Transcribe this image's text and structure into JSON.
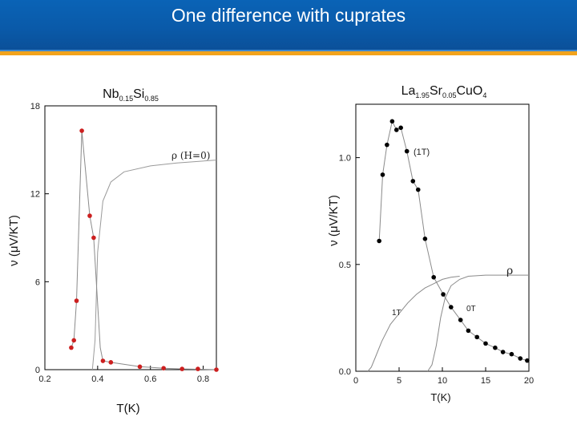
{
  "slide": {
    "title": "One difference with cuprates"
  },
  "chart_data": [
    {
      "type": "scatter",
      "title_main": "Nb",
      "title_sub1": "0.15",
      "title_mid": "Si",
      "title_sub2": "0.85",
      "xlabel": "T(K)",
      "ylabel": "ν (μV/KT)",
      "xlim": [
        0.2,
        0.85
      ],
      "ylim": [
        0,
        18
      ],
      "xticks": [
        "0.2",
        "0.4",
        "0.6",
        "0.8"
      ],
      "yticks": [
        "0",
        "6",
        "12",
        "18"
      ],
      "series": [
        {
          "points": [
            [
              0.3,
              1.5
            ],
            [
              0.31,
              2.0
            ],
            [
              0.32,
              4.7
            ],
            [
              0.34,
              16.3
            ],
            [
              0.37,
              10.5
            ],
            [
              0.385,
              9.0
            ],
            [
              0.42,
              0.6
            ],
            [
              0.45,
              0.5
            ],
            [
              0.56,
              0.2
            ],
            [
              0.65,
              0.1
            ],
            [
              0.72,
              0.05
            ],
            [
              0.78,
              0.05
            ],
            [
              0.85,
              0.0
            ]
          ],
          "color": "#cc1f1f"
        }
      ],
      "guide_line": [
        [
          0.3,
          1.5
        ],
        [
          0.31,
          2.0
        ],
        [
          0.32,
          4.7
        ],
        [
          0.34,
          16.3
        ],
        [
          0.37,
          10.5
        ],
        [
          0.385,
          9.0
        ],
        [
          0.41,
          1.5
        ],
        [
          0.42,
          0.6
        ],
        [
          0.45,
          0.5
        ],
        [
          0.56,
          0.2
        ],
        [
          0.65,
          0.1
        ],
        [
          0.72,
          0.05
        ],
        [
          0.85,
          0.0
        ]
      ],
      "rho_curve": [
        [
          0.38,
          0.0
        ],
        [
          0.39,
          2.0
        ],
        [
          0.4,
          8.0
        ],
        [
          0.42,
          11.5
        ],
        [
          0.45,
          12.8
        ],
        [
          0.5,
          13.5
        ],
        [
          0.6,
          13.9
        ],
        [
          0.7,
          14.1
        ],
        [
          0.85,
          14.3
        ]
      ],
      "rho_label": "ρ (H=0)"
    },
    {
      "type": "scatter",
      "title_main": "La",
      "title_sub1": "1.95",
      "title_mid": "Sr",
      "title_sub2": "0.05",
      "title_end": "CuO",
      "title_sub3": "4",
      "xlabel": "T(K)",
      "ylabel": "ν (μV/KT)",
      "xlim": [
        0,
        20
      ],
      "ylim": [
        0,
        1.25
      ],
      "xticks": [
        "0",
        "5",
        "10",
        "15",
        "20"
      ],
      "yticks": [
        "0.0",
        "0.5",
        "1.0"
      ],
      "series": [
        {
          "name": "(1T)",
          "points": [
            [
              2.7,
              0.61
            ],
            [
              3.1,
              0.92
            ],
            [
              3.6,
              1.06
            ],
            [
              4.2,
              1.17
            ],
            [
              4.7,
              1.13
            ],
            [
              5.2,
              1.14
            ],
            [
              5.9,
              1.03
            ],
            [
              6.6,
              0.89
            ],
            [
              7.2,
              0.85
            ],
            [
              8.0,
              0.62
            ],
            [
              9.0,
              0.44
            ],
            [
              10.1,
              0.36
            ],
            [
              11.0,
              0.3
            ],
            [
              12.1,
              0.24
            ],
            [
              13.0,
              0.19
            ],
            [
              14.0,
              0.16
            ],
            [
              15.0,
              0.13
            ],
            [
              16.1,
              0.11
            ],
            [
              17.0,
              0.09
            ],
            [
              18.0,
              0.08
            ],
            [
              19.0,
              0.06
            ],
            [
              19.8,
              0.05
            ]
          ],
          "color": "#000000"
        }
      ],
      "rho_label": "ρ",
      "curve_1T_label": "1T",
      "curve_0T_label": "0T",
      "curve_1T": [
        [
          1.4,
          0.0
        ],
        [
          1.8,
          0.02
        ],
        [
          2.2,
          0.06
        ],
        [
          3.0,
          0.14
        ],
        [
          4.0,
          0.22
        ],
        [
          5.0,
          0.27
        ],
        [
          6.0,
          0.32
        ],
        [
          7.0,
          0.36
        ],
        [
          8.0,
          0.39
        ],
        [
          9.0,
          0.41
        ],
        [
          10.0,
          0.43
        ],
        [
          11.0,
          0.44
        ],
        [
          12.0,
          0.445
        ]
      ],
      "curve_0T": [
        [
          8.3,
          0.0
        ],
        [
          8.8,
          0.03
        ],
        [
          9.3,
          0.12
        ],
        [
          9.8,
          0.25
        ],
        [
          10.3,
          0.34
        ],
        [
          11.0,
          0.4
        ],
        [
          12.0,
          0.43
        ],
        [
          13.0,
          0.445
        ],
        [
          15.0,
          0.45
        ],
        [
          17.0,
          0.45
        ],
        [
          20.0,
          0.45
        ]
      ]
    }
  ]
}
